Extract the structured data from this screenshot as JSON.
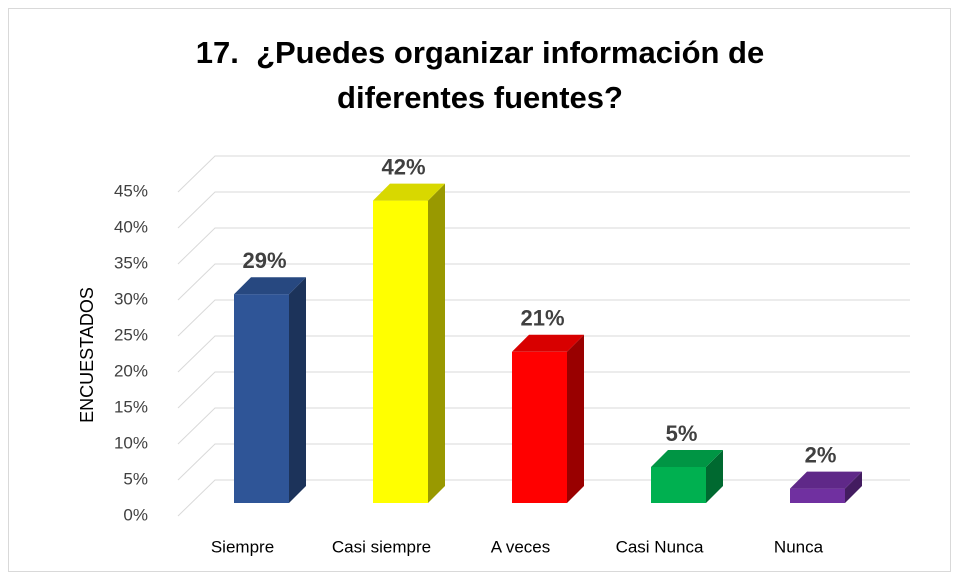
{
  "chart_data": {
    "type": "bar3d",
    "title": "17.  ¿Puedes organizar información de diferentes fuentes?",
    "y_label": "ENCUESTADOS",
    "categories": [
      "Siempre",
      "Casi siempre",
      "A veces",
      "Casi Nunca",
      "Nunca"
    ],
    "values": [
      29,
      42,
      21,
      5,
      2
    ],
    "value_labels": [
      "29%",
      "42%",
      "21%",
      "5%",
      "2%"
    ],
    "colors": [
      "#2f5597",
      "#ffff00",
      "#ff0000",
      "#00b050",
      "#7030a0"
    ],
    "ylim": [
      0,
      45
    ],
    "yticks": [
      {
        "value": 0,
        "label": "0%"
      },
      {
        "value": 5,
        "label": "5%"
      },
      {
        "value": 10,
        "label": "10%"
      },
      {
        "value": 15,
        "label": "15%"
      },
      {
        "value": 20,
        "label": "20%"
      },
      {
        "value": 25,
        "label": "25%"
      },
      {
        "value": 30,
        "label": "30%"
      },
      {
        "value": 35,
        "label": "35%"
      },
      {
        "value": 40,
        "label": "40%"
      },
      {
        "value": 45,
        "label": "45%"
      }
    ],
    "grid": true
  }
}
